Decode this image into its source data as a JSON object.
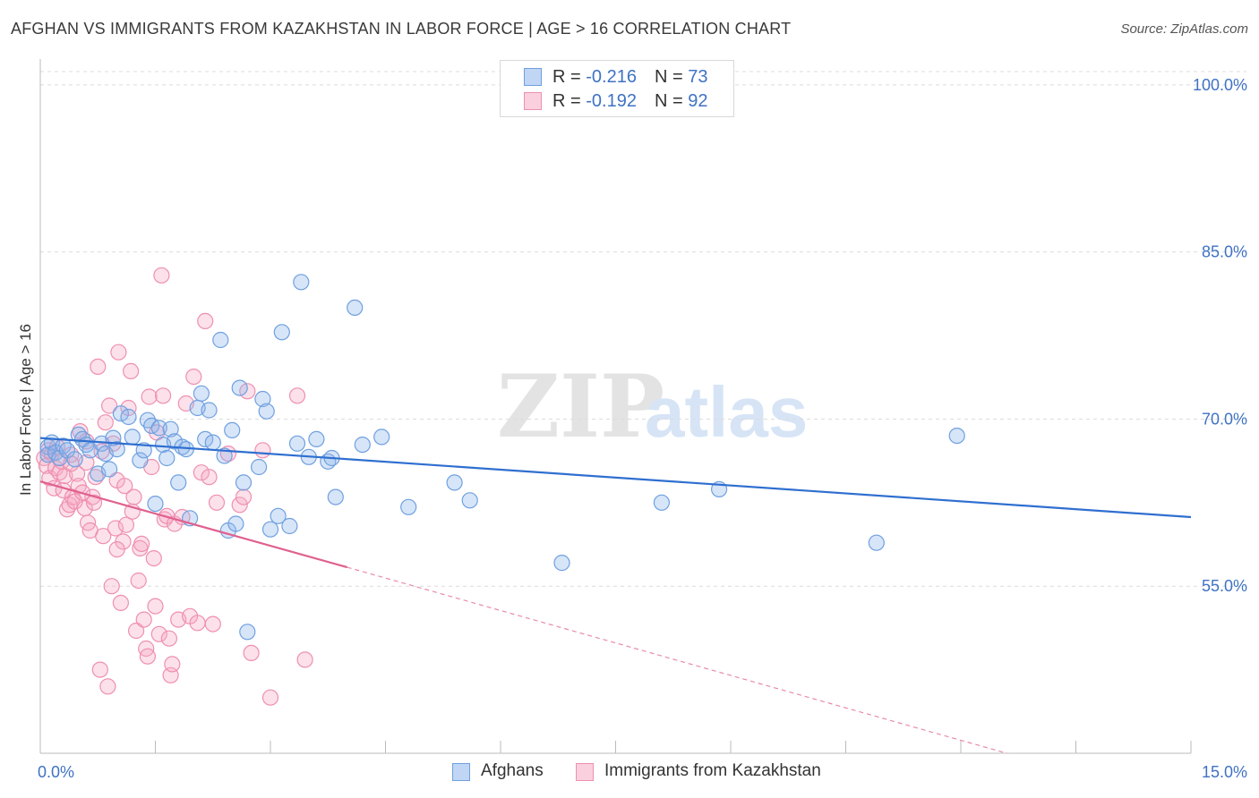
{
  "title": "AFGHAN VS IMMIGRANTS FROM KAZAKHSTAN IN LABOR FORCE | AGE > 16 CORRELATION CHART",
  "source": "Source: ZipAtlas.com",
  "watermark": {
    "zip": "ZIP",
    "atlas": "atlas"
  },
  "legend": {
    "rows": [
      {
        "r_label": "R = ",
        "r_value": "-0.216",
        "n_label": "N = ",
        "n_value": "73",
        "color": "#6fa0e0"
      },
      {
        "r_label": "R = ",
        "r_value": "-0.192",
        "n_label": "N = ",
        "n_value": "92",
        "color": "#ef8fb0"
      }
    ]
  },
  "chart_data": {
    "type": "scatter",
    "title": "AFGHAN VS IMMIGRANTS FROM KAZAKHSTAN IN LABOR FORCE | AGE > 16 CORRELATION CHART",
    "xlabel": "",
    "ylabel": "In Labor Force | Age > 16",
    "xlim": [
      0,
      15
    ],
    "ylim": [
      40,
      102
    ],
    "x_tick_labels": [
      "0.0%",
      "15.0%"
    ],
    "y_ticks": [
      55,
      70,
      85,
      100
    ],
    "y_tick_labels": [
      "55.0%",
      "70.0%",
      "85.0%",
      "100.0%"
    ],
    "series": [
      {
        "name": "Afghans",
        "color": "#6fa0e0",
        "fill": "rgba(140,180,235,0.35)",
        "trend": {
          "x0": 0.0,
          "y0": 68.3,
          "x1": 15.0,
          "y1": 61.2
        },
        "points": [
          [
            0.1,
            67.5
          ],
          [
            0.1,
            66.8
          ],
          [
            0.15,
            67.9
          ],
          [
            0.2,
            67.0
          ],
          [
            0.25,
            66.5
          ],
          [
            0.3,
            67.6
          ],
          [
            0.35,
            67.2
          ],
          [
            0.45,
            66.4
          ],
          [
            0.5,
            68.6
          ],
          [
            0.55,
            68.2
          ],
          [
            0.6,
            67.7
          ],
          [
            0.65,
            67.2
          ],
          [
            0.75,
            65.1
          ],
          [
            0.8,
            67.8
          ],
          [
            0.85,
            66.9
          ],
          [
            0.9,
            65.5
          ],
          [
            0.95,
            68.3
          ],
          [
            1.0,
            67.3
          ],
          [
            1.05,
            70.5
          ],
          [
            1.15,
            70.2
          ],
          [
            1.2,
            68.4
          ],
          [
            1.3,
            66.3
          ],
          [
            1.35,
            67.2
          ],
          [
            1.4,
            69.9
          ],
          [
            1.45,
            69.4
          ],
          [
            1.5,
            62.4
          ],
          [
            1.55,
            69.2
          ],
          [
            1.6,
            67.7
          ],
          [
            1.65,
            66.5
          ],
          [
            1.7,
            69.1
          ],
          [
            1.75,
            68.0
          ],
          [
            1.8,
            64.3
          ],
          [
            1.85,
            67.5
          ],
          [
            1.9,
            67.3
          ],
          [
            1.95,
            61.1
          ],
          [
            2.05,
            71.0
          ],
          [
            2.1,
            72.3
          ],
          [
            2.15,
            68.2
          ],
          [
            2.2,
            70.8
          ],
          [
            2.25,
            67.9
          ],
          [
            2.35,
            77.1
          ],
          [
            2.4,
            66.7
          ],
          [
            2.45,
            60.0
          ],
          [
            2.5,
            69.0
          ],
          [
            2.55,
            60.6
          ],
          [
            2.6,
            72.8
          ],
          [
            2.65,
            64.3
          ],
          [
            2.7,
            50.9
          ],
          [
            2.85,
            65.7
          ],
          [
            2.9,
            71.8
          ],
          [
            2.95,
            70.7
          ],
          [
            3.0,
            60.1
          ],
          [
            3.1,
            61.3
          ],
          [
            3.15,
            77.8
          ],
          [
            3.25,
            60.4
          ],
          [
            3.35,
            67.8
          ],
          [
            3.4,
            82.3
          ],
          [
            3.5,
            66.6
          ],
          [
            3.6,
            68.2
          ],
          [
            3.75,
            66.2
          ],
          [
            3.8,
            66.5
          ],
          [
            3.85,
            63.0
          ],
          [
            4.1,
            80.0
          ],
          [
            4.2,
            67.7
          ],
          [
            4.45,
            68.4
          ],
          [
            4.8,
            62.1
          ],
          [
            5.4,
            64.3
          ],
          [
            5.6,
            62.7
          ],
          [
            6.8,
            57.1
          ],
          [
            8.1,
            62.5
          ],
          [
            8.85,
            63.7
          ],
          [
            10.9,
            58.9
          ],
          [
            11.95,
            68.5
          ]
        ]
      },
      {
        "name": "Immigrants from Kazakhstan",
        "color": "#ef8fb0",
        "fill": "rgba(245,170,195,0.35)",
        "trend": {
          "x0": 0.0,
          "y0": 64.4,
          "x1": 4.0,
          "y1": 56.7
        },
        "trend_dashed": {
          "x0": 4.0,
          "y0": 56.7,
          "x1": 12.6,
          "y1": 40.0
        },
        "points": [
          [
            0.05,
            66.5
          ],
          [
            0.08,
            65.8
          ],
          [
            0.1,
            67.2
          ],
          [
            0.12,
            64.7
          ],
          [
            0.15,
            66.9
          ],
          [
            0.18,
            63.8
          ],
          [
            0.2,
            65.6
          ],
          [
            0.22,
            67.5
          ],
          [
            0.25,
            65.2
          ],
          [
            0.28,
            66.2
          ],
          [
            0.3,
            63.6
          ],
          [
            0.32,
            64.9
          ],
          [
            0.35,
            61.9
          ],
          [
            0.38,
            62.3
          ],
          [
            0.4,
            66.8
          ],
          [
            0.42,
            63.0
          ],
          [
            0.45,
            62.6
          ],
          [
            0.48,
            65.1
          ],
          [
            0.5,
            64.0
          ],
          [
            0.52,
            68.9
          ],
          [
            0.55,
            63.4
          ],
          [
            0.58,
            62.0
          ],
          [
            0.6,
            66.1
          ],
          [
            0.62,
            60.7
          ],
          [
            0.65,
            60.0
          ],
          [
            0.68,
            63.0
          ],
          [
            0.7,
            62.5
          ],
          [
            0.72,
            64.8
          ],
          [
            0.75,
            74.7
          ],
          [
            0.78,
            47.5
          ],
          [
            0.8,
            67.1
          ],
          [
            0.82,
            59.5
          ],
          [
            0.85,
            69.7
          ],
          [
            0.88,
            46.0
          ],
          [
            0.9,
            71.2
          ],
          [
            0.93,
            55.0
          ],
          [
            0.95,
            67.8
          ],
          [
            0.98,
            60.2
          ],
          [
            1.0,
            64.5
          ],
          [
            1.02,
            76.0
          ],
          [
            1.05,
            53.5
          ],
          [
            1.08,
            59.0
          ],
          [
            1.1,
            64.0
          ],
          [
            1.12,
            60.5
          ],
          [
            1.15,
            71.0
          ],
          [
            1.18,
            74.3
          ],
          [
            1.2,
            61.7
          ],
          [
            1.22,
            63.0
          ],
          [
            1.25,
            51.0
          ],
          [
            1.28,
            55.5
          ],
          [
            1.3,
            58.4
          ],
          [
            1.32,
            58.8
          ],
          [
            1.35,
            52.0
          ],
          [
            1.38,
            49.4
          ],
          [
            1.4,
            48.7
          ],
          [
            1.42,
            72.0
          ],
          [
            1.45,
            65.7
          ],
          [
            1.48,
            57.5
          ],
          [
            1.5,
            53.2
          ],
          [
            1.52,
            68.8
          ],
          [
            1.55,
            50.7
          ],
          [
            1.58,
            82.9
          ],
          [
            1.6,
            72.1
          ],
          [
            1.62,
            61.0
          ],
          [
            1.65,
            61.3
          ],
          [
            1.68,
            50.3
          ],
          [
            1.7,
            47.0
          ],
          [
            1.72,
            48.0
          ],
          [
            1.75,
            60.6
          ],
          [
            1.8,
            52.0
          ],
          [
            1.85,
            61.2
          ],
          [
            1.9,
            71.4
          ],
          [
            1.95,
            52.3
          ],
          [
            2.0,
            73.8
          ],
          [
            2.05,
            51.7
          ],
          [
            2.1,
            65.2
          ],
          [
            2.15,
            78.8
          ],
          [
            2.2,
            64.8
          ],
          [
            2.25,
            51.6
          ],
          [
            2.3,
            62.5
          ],
          [
            2.45,
            66.9
          ],
          [
            2.6,
            62.3
          ],
          [
            2.65,
            63.0
          ],
          [
            2.7,
            72.5
          ],
          [
            2.75,
            49.0
          ],
          [
            2.9,
            67.2
          ],
          [
            3.0,
            45.0
          ],
          [
            3.35,
            72.1
          ],
          [
            3.45,
            48.4
          ],
          [
            0.6,
            68.0
          ],
          [
            0.4,
            66.0
          ],
          [
            1.0,
            58.3
          ]
        ]
      }
    ]
  }
}
